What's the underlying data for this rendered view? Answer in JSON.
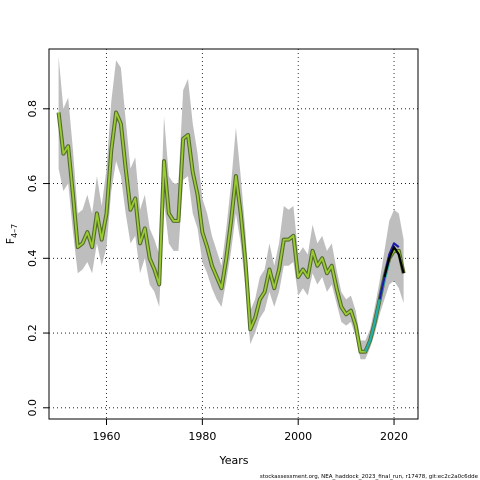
{
  "chart_data": {
    "type": "line",
    "xlabel": "Years",
    "ylabel_main": "F",
    "ylabel_sub": "4–7",
    "xlim": [
      1948,
      2025
    ],
    "ylim": [
      -0.03,
      0.96
    ],
    "x_ticks": [
      1960,
      1980,
      2000,
      2020
    ],
    "y_ticks": [
      0.0,
      0.2,
      0.4,
      0.6,
      0.8
    ],
    "x_tick_labels": [
      "1960",
      "1980",
      "2000",
      "2020"
    ],
    "y_tick_labels": [
      "0.0",
      "0.2",
      "0.4",
      "0.6",
      "0.8"
    ],
    "grid": true,
    "footer": "stockassessment.org, NEA_haddock_2023_final_run, r17478, git:ec2c2a0c6dde",
    "colors": {
      "band": "#bebebe",
      "main_line": "#556b2f",
      "main_line_inner": "#9acd32",
      "retro_teal": "#20b2aa",
      "retro_blue": "#1e1ea8",
      "retro_black": "#000000",
      "grid": "#000000"
    },
    "series": [
      {
        "x": [
          1950,
          1951,
          1952,
          1953,
          1954,
          1955,
          1956,
          1957,
          1958,
          1959,
          1960,
          1961,
          1962,
          1963,
          1964,
          1965,
          1966,
          1967,
          1968,
          1969,
          1970,
          1971,
          1972,
          1973,
          1974,
          1975,
          1976,
          1977,
          1978,
          1979,
          1980,
          1981,
          1982,
          1983,
          1984,
          1985,
          1986,
          1987,
          1988,
          1989,
          1990,
          1991,
          1992,
          1993,
          1994,
          1995,
          1996,
          1997,
          1998,
          1999,
          2000,
          2001,
          2002,
          2003,
          2004,
          2005,
          2006,
          2007,
          2008,
          2009,
          2010,
          2011,
          2012,
          2013,
          2014,
          2015,
          2016,
          2017,
          2018,
          2019,
          2020,
          2021,
          2022
        ],
        "y": [
          0.79,
          0.68,
          0.7,
          0.57,
          0.43,
          0.44,
          0.47,
          0.43,
          0.52,
          0.45,
          0.52,
          0.69,
          0.79,
          0.76,
          0.64,
          0.53,
          0.56,
          0.44,
          0.48,
          0.4,
          0.37,
          0.33,
          0.66,
          0.52,
          0.5,
          0.5,
          0.72,
          0.73,
          0.63,
          0.57,
          0.47,
          0.43,
          0.38,
          0.35,
          0.32,
          0.4,
          0.5,
          0.62,
          0.52,
          0.39,
          0.21,
          0.24,
          0.29,
          0.31,
          0.37,
          0.32,
          0.37,
          0.45,
          0.45,
          0.46,
          0.35,
          0.37,
          0.35,
          0.42,
          0.38,
          0.4,
          0.36,
          0.38,
          0.32,
          0.27,
          0.25,
          0.26,
          0.22,
          0.15,
          0.15,
          0.18,
          0.23,
          0.29,
          0.35,
          0.4,
          0.42,
          0.42,
          0.36
        ],
        "lower": [
          0.64,
          0.58,
          0.6,
          0.47,
          0.36,
          0.37,
          0.39,
          0.36,
          0.44,
          0.38,
          0.43,
          0.58,
          0.66,
          0.62,
          0.52,
          0.44,
          0.46,
          0.36,
          0.4,
          0.33,
          0.31,
          0.27,
          0.55,
          0.44,
          0.42,
          0.42,
          0.61,
          0.62,
          0.52,
          0.48,
          0.39,
          0.36,
          0.32,
          0.29,
          0.27,
          0.34,
          0.42,
          0.52,
          0.44,
          0.32,
          0.17,
          0.2,
          0.24,
          0.26,
          0.31,
          0.27,
          0.31,
          0.38,
          0.38,
          0.39,
          0.3,
          0.32,
          0.3,
          0.36,
          0.33,
          0.35,
          0.31,
          0.33,
          0.28,
          0.23,
          0.22,
          0.23,
          0.19,
          0.13,
          0.13,
          0.16,
          0.2,
          0.25,
          0.29,
          0.33,
          0.34,
          0.32,
          0.28
        ],
        "upper": [
          0.94,
          0.8,
          0.83,
          0.69,
          0.52,
          0.53,
          0.57,
          0.52,
          0.62,
          0.54,
          0.64,
          0.82,
          0.93,
          0.91,
          0.77,
          0.64,
          0.67,
          0.53,
          0.57,
          0.48,
          0.45,
          0.41,
          0.78,
          0.62,
          0.6,
          0.6,
          0.85,
          0.88,
          0.76,
          0.68,
          0.56,
          0.52,
          0.46,
          0.42,
          0.38,
          0.48,
          0.6,
          0.75,
          0.62,
          0.47,
          0.26,
          0.29,
          0.35,
          0.37,
          0.44,
          0.38,
          0.44,
          0.54,
          0.53,
          0.54,
          0.41,
          0.43,
          0.41,
          0.49,
          0.44,
          0.46,
          0.42,
          0.44,
          0.37,
          0.31,
          0.29,
          0.3,
          0.26,
          0.18,
          0.18,
          0.21,
          0.27,
          0.34,
          0.42,
          0.5,
          0.53,
          0.52,
          0.45
        ]
      }
    ],
    "retro_lines": [
      {
        "color": "teal",
        "x": [
          2014,
          2015,
          2016,
          2017,
          2018,
          2019
        ],
        "y": [
          0.15,
          0.18,
          0.23,
          0.29,
          0.34,
          0.39
        ]
      },
      {
        "color": "blue",
        "x": [
          2017,
          2018,
          2019,
          2020,
          2021
        ],
        "y": [
          0.29,
          0.35,
          0.41,
          0.44,
          0.43
        ]
      },
      {
        "color": "black",
        "x": [
          2018,
          2019,
          2020,
          2021,
          2022
        ],
        "y": [
          0.35,
          0.4,
          0.43,
          0.41,
          0.36
        ]
      }
    ]
  }
}
